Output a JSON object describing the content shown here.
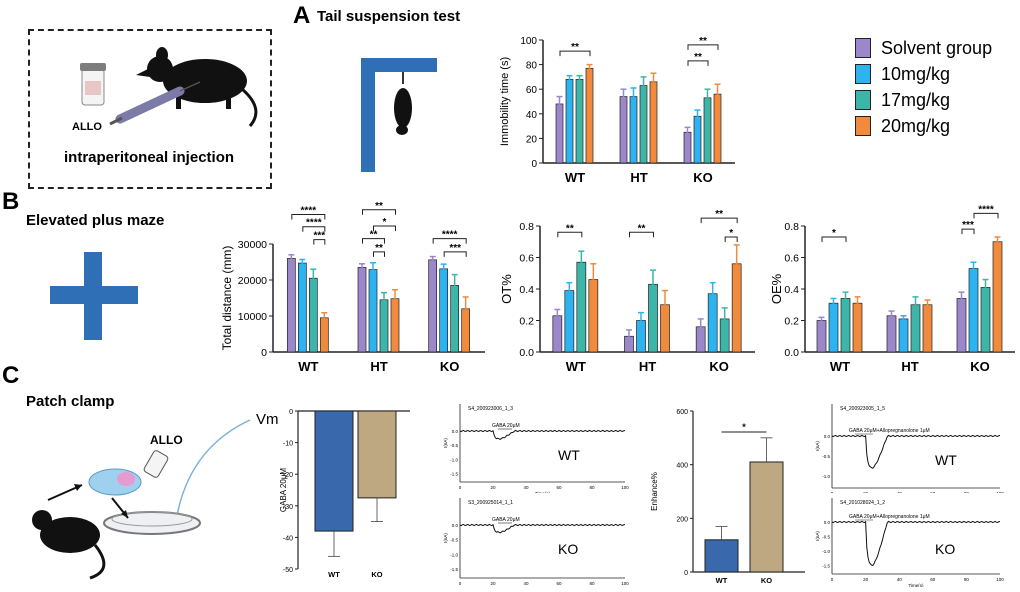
{
  "colors": {
    "solvent": "#9B87C9",
    "d10": "#2CB3F0",
    "d17": "#3EB5A9",
    "d20": "#F08A3C",
    "wt_bar": "#3A68AC",
    "ko_bar": "#BDA882",
    "axis": "#222222"
  },
  "panels": {
    "A": {
      "letter": "A",
      "title": "Tail suspension test",
      "inj_text": "intraperitoneal injection",
      "allo_label": "ALLO"
    },
    "B": {
      "letter": "B",
      "title": "Elevated plus maze"
    },
    "C": {
      "letter": "C",
      "title": "Patch clamp",
      "allo_label": "ALLO",
      "vm_label": "Vm"
    }
  },
  "legend": {
    "items": [
      {
        "label": "Solvent group",
        "color": "#9B87C9"
      },
      {
        "label": "10mg/kg",
        "color": "#2CB3F0"
      },
      {
        "label": "17mg/kg",
        "color": "#3EB5A9"
      },
      {
        "label": "20mg/kg",
        "color": "#F08A3C"
      }
    ]
  },
  "chart_data": [
    {
      "id": "immobility",
      "type": "bar",
      "ylabel": "Immobility time  (s)",
      "ylim": [
        0,
        100
      ],
      "yticks": [
        "0",
        "20",
        "40",
        "60",
        "80",
        "100"
      ],
      "categories": [
        "WT",
        "HT",
        "KO"
      ],
      "series": [
        {
          "name": "Solvent group",
          "values": [
            48,
            54,
            25
          ],
          "err": [
            6,
            6,
            4
          ]
        },
        {
          "name": "10mg/kg",
          "values": [
            68,
            54,
            38
          ],
          "err": [
            3,
            7,
            5
          ]
        },
        {
          "name": "17mg/kg",
          "values": [
            68,
            63,
            53
          ],
          "err": [
            3,
            7,
            7
          ]
        },
        {
          "name": "20mg/kg",
          "values": [
            77,
            66,
            56
          ],
          "err": [
            3,
            7,
            8
          ]
        }
      ],
      "sig": [
        {
          "label": "**",
          "g": 0,
          "s1": 0,
          "s2": 3,
          "y": 91
        },
        {
          "label": "**",
          "g": 2,
          "s1": 0,
          "s2": 3,
          "y": 96
        },
        {
          "label": "**",
          "g": 2,
          "s1": 0,
          "s2": 2,
          "y": 83
        }
      ]
    },
    {
      "id": "total_distance",
      "type": "bar",
      "ylabel": "Total distance  (mm)",
      "ylim": [
        0,
        30000
      ],
      "yticks": [
        "0",
        "10000",
        "20000",
        "30000"
      ],
      "categories": [
        "WT",
        "HT",
        "KO"
      ],
      "series": [
        {
          "name": "Solvent group",
          "values": [
            26000,
            23500,
            25600
          ],
          "err": [
            1000,
            1000,
            900
          ]
        },
        {
          "name": "10mg/kg",
          "values": [
            24700,
            22900,
            23100
          ],
          "err": [
            1000,
            1900,
            1300
          ]
        },
        {
          "name": "17mg/kg",
          "values": [
            20500,
            14500,
            18500
          ],
          "err": [
            2500,
            2000,
            3000
          ]
        },
        {
          "name": "20mg/kg",
          "values": [
            9500,
            14800,
            12000
          ],
          "err": [
            1400,
            2500,
            3300
          ]
        }
      ],
      "sig": [
        {
          "label": "****",
          "g": 0,
          "s1": 0,
          "s2": 3,
          "y": 38200
        },
        {
          "label": "****",
          "g": 0,
          "s1": 1,
          "s2": 3,
          "y": 34800
        },
        {
          "label": "***",
          "g": 0,
          "s1": 2,
          "s2": 3,
          "y": 31200
        },
        {
          "label": "**",
          "g": 1,
          "s1": 0,
          "s2": 3,
          "y": 39500
        },
        {
          "label": "*",
          "g": 1,
          "s1": 1,
          "s2": 3,
          "y": 35000
        },
        {
          "label": "**",
          "g": 1,
          "s1": 0,
          "s2": 2,
          "y": 31500
        },
        {
          "label": "**",
          "g": 1,
          "s1": 1,
          "s2": 2,
          "y": 27800
        },
        {
          "label": "****",
          "g": 2,
          "s1": 0,
          "s2": 3,
          "y": 31500
        },
        {
          "label": "***",
          "g": 2,
          "s1": 1,
          "s2": 3,
          "y": 27800
        }
      ]
    },
    {
      "id": "ot_percent",
      "type": "bar",
      "ylabel": "OT%",
      "ylim": [
        0,
        0.8
      ],
      "yticks": [
        "0.0",
        "0.2",
        "0.4",
        "0.6",
        "0.8"
      ],
      "categories": [
        "WT",
        "HT",
        "KO"
      ],
      "series": [
        {
          "name": "Solvent group",
          "values": [
            0.23,
            0.1,
            0.16
          ],
          "err": [
            0.04,
            0.04,
            0.05
          ]
        },
        {
          "name": "10mg/kg",
          "values": [
            0.39,
            0.2,
            0.37
          ],
          "err": [
            0.05,
            0.05,
            0.07
          ]
        },
        {
          "name": "17mg/kg",
          "values": [
            0.57,
            0.43,
            0.21
          ],
          "err": [
            0.07,
            0.09,
            0.07
          ]
        },
        {
          "name": "20mg/kg",
          "values": [
            0.46,
            0.3,
            0.56
          ],
          "err": [
            0.1,
            0.09,
            0.12
          ]
        }
      ],
      "sig": [
        {
          "label": "**",
          "g": 0,
          "s1": 0,
          "s2": 2,
          "y": 0.76
        },
        {
          "label": "**",
          "g": 1,
          "s1": 0,
          "s2": 2,
          "y": 0.76
        },
        {
          "label": "**",
          "g": 2,
          "s1": 0,
          "s2": 3,
          "y": 0.85
        },
        {
          "label": "*",
          "g": 2,
          "s1": 2,
          "s2": 3,
          "y": 0.73
        }
      ]
    },
    {
      "id": "oe_percent",
      "type": "bar",
      "ylabel": "OE%",
      "ylim": [
        0,
        0.8
      ],
      "yticks": [
        "0.0",
        "0.2",
        "0.4",
        "0.6",
        "0.8"
      ],
      "categories": [
        "WT",
        "HT",
        "KO"
      ],
      "series": [
        {
          "name": "Solvent group",
          "values": [
            0.2,
            0.23,
            0.34
          ],
          "err": [
            0.02,
            0.03,
            0.04
          ]
        },
        {
          "name": "10mg/kg",
          "values": [
            0.31,
            0.21,
            0.53
          ],
          "err": [
            0.03,
            0.02,
            0.04
          ]
        },
        {
          "name": "17mg/kg",
          "values": [
            0.34,
            0.3,
            0.41
          ],
          "err": [
            0.04,
            0.05,
            0.05
          ]
        },
        {
          "name": "20mg/kg",
          "values": [
            0.31,
            0.3,
            0.7
          ],
          "err": [
            0.04,
            0.03,
            0.03
          ]
        }
      ],
      "sig": [
        {
          "label": "*",
          "g": 0,
          "s1": 0,
          "s2": 2,
          "y": 0.73
        },
        {
          "label": "***",
          "g": 2,
          "s1": 0,
          "s2": 1,
          "y": 0.78
        },
        {
          "label": "****",
          "g": 2,
          "s1": 1,
          "s2": 3,
          "y": 0.88
        }
      ]
    },
    {
      "id": "gaba",
      "type": "bar",
      "ylabel": "GABA 20μM",
      "ylim": [
        -50,
        0
      ],
      "yticks": [
        "0",
        "-10",
        "-20",
        "-30",
        "-40",
        "-50"
      ],
      "categories": [
        "WT",
        "KO"
      ],
      "values": [
        -38,
        -27.5
      ],
      "err": [
        8,
        7.5
      ]
    },
    {
      "id": "enhance",
      "type": "bar",
      "ylabel": "Enhance%",
      "ylim": [
        0,
        600
      ],
      "yticks": [
        "0",
        "200",
        "400",
        "600"
      ],
      "categories": [
        "WT",
        "KO"
      ],
      "values": [
        120,
        410
      ],
      "err": [
        50,
        90
      ],
      "sig_label": "*"
    }
  ],
  "traces": [
    {
      "id": "t1",
      "title": "S4_200923006_1_3",
      "stim": "GABA 20μM",
      "label": "WT",
      "ylabel": "I(nA)",
      "xlabel": "Time(s)",
      "xticks": [
        "0",
        "20",
        "40",
        "60",
        "80",
        "100"
      ],
      "yticks": [
        "0.0",
        "-0.5",
        "-1.0",
        "-1.5"
      ],
      "depth": 0.28
    },
    {
      "id": "t2",
      "title": "S3_200925014_1_1",
      "stim": "GABA 20μM",
      "label": "KO",
      "ylabel": "I(nA)",
      "xlabel": "Time(s)",
      "xticks": [
        "0",
        "20",
        "40",
        "60",
        "80",
        "100"
      ],
      "yticks": [
        "0.0",
        "-0.5",
        "-1.0",
        "-1.5"
      ],
      "depth": 0.25
    },
    {
      "id": "t3",
      "title": "S4_200923005_1_5",
      "stim": "GABA 20μM+Allopregnanolone 1μM",
      "label": "WT",
      "ylabel": "I(nA)",
      "xlabel": "Time(s)",
      "xticks": [
        "0",
        "20",
        "40",
        "60",
        "80",
        "100"
      ],
      "yticks": [
        "0.0",
        "-0.5",
        "-1.0"
      ],
      "depth": 0.8
    },
    {
      "id": "t4",
      "title": "S4_201028024_1_2",
      "stim": "GABA 20μM+Allopregnanolone 1μM",
      "label": "KO",
      "ylabel": "I(nA)",
      "xlabel": "Time(s)",
      "xticks": [
        "0",
        "20",
        "40",
        "60",
        "80",
        "100"
      ],
      "yticks": [
        "0.0",
        "-0.5",
        "-1.0",
        "-1.5"
      ],
      "depth": 1.5
    }
  ]
}
